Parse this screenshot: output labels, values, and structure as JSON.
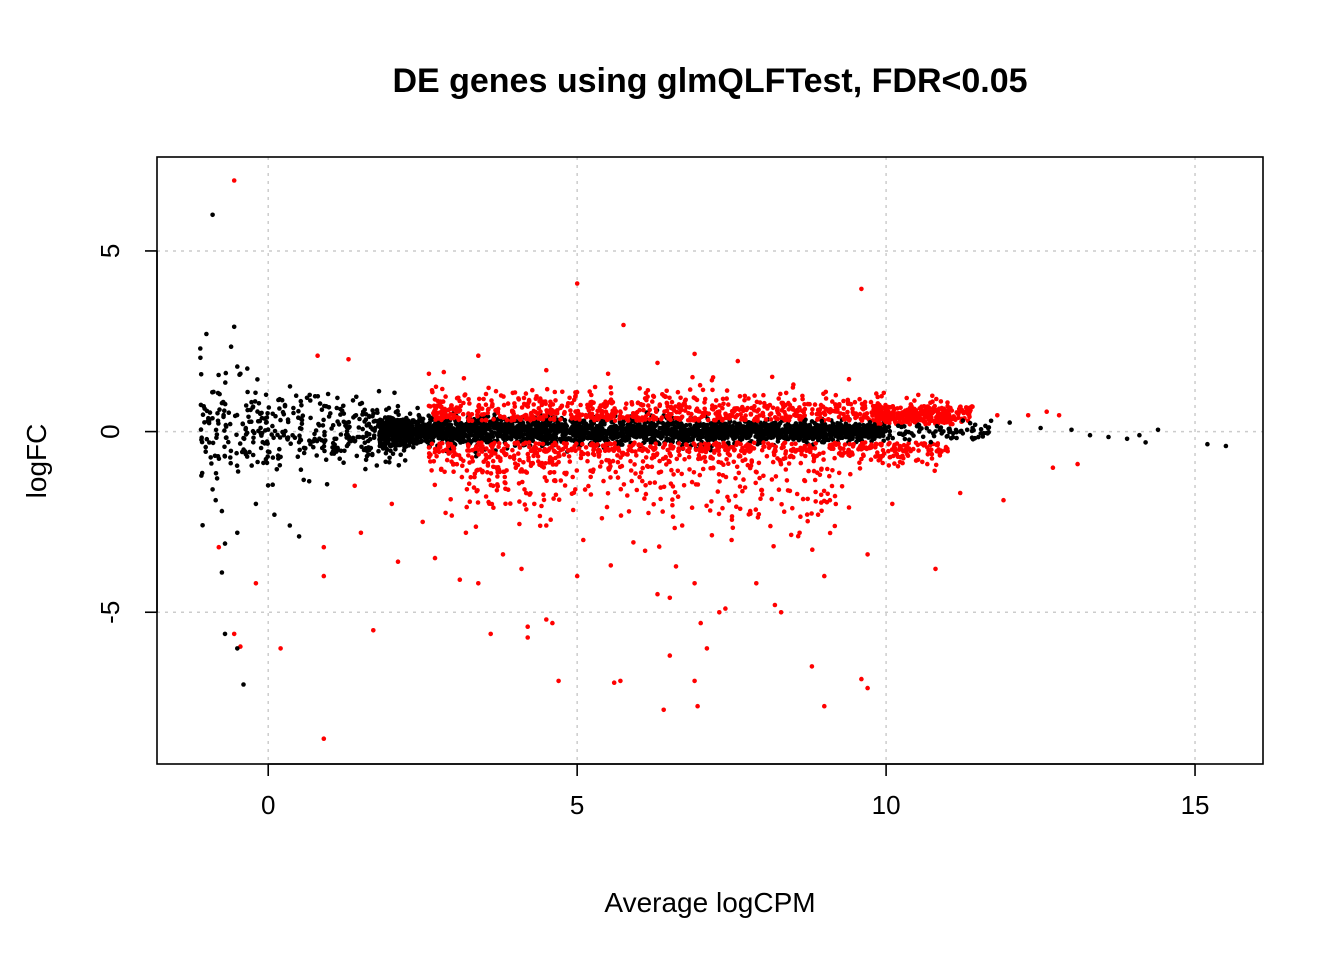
{
  "chart_data": {
    "type": "scatter",
    "title": "DE genes using glmQLFTest, FDR<0.05",
    "xlabel": "Average logCPM",
    "ylabel": "logFC",
    "xlim": [
      -1.8,
      16.1
    ],
    "ylim": [
      -9.2,
      7.6
    ],
    "xticks": [
      0,
      5,
      10,
      15
    ],
    "yticks": [
      -5,
      0,
      5
    ],
    "xtick_labels": [
      "0",
      "5",
      "10",
      "15"
    ],
    "ytick_labels": [
      "-5",
      "0",
      "5"
    ],
    "grid": true,
    "legend": "none",
    "colors": {
      "de": "#ff0000",
      "not_de": "#000000",
      "grid": "#cccccc"
    },
    "series_note_bulk": "bulk of genes lie near logFC 0; DE genes are red, non-DE genes black",
    "series": [
      {
        "color": "#ff0000",
        "points": [
          [
            -0.55,
            6.95
          ],
          [
            5.0,
            4.1
          ],
          [
            9.6,
            3.95
          ],
          [
            5.75,
            2.95
          ],
          [
            0.8,
            2.1
          ],
          [
            1.3,
            2.0
          ],
          [
            3.4,
            2.1
          ],
          [
            6.9,
            2.15
          ],
          [
            7.6,
            1.95
          ],
          [
            6.3,
            1.9
          ],
          [
            9.4,
            1.45
          ],
          [
            4.5,
            1.7
          ],
          [
            5.5,
            1.6
          ],
          [
            8.5,
            1.3
          ],
          [
            7.2,
            1.5
          ],
          [
            2.6,
            1.6
          ],
          [
            0.9,
            -3.2
          ],
          [
            -0.8,
            -3.2
          ],
          [
            -0.2,
            -4.2
          ],
          [
            0.9,
            -4.0
          ],
          [
            1.7,
            -5.5
          ],
          [
            0.2,
            -6.0
          ],
          [
            -0.55,
            -5.6
          ],
          [
            -0.45,
            -5.95
          ],
          [
            0.9,
            -8.5
          ],
          [
            2.1,
            -3.6
          ],
          [
            2.7,
            -3.5
          ],
          [
            3.1,
            -4.1
          ],
          [
            3.4,
            -4.2
          ],
          [
            3.6,
            -5.6
          ],
          [
            4.2,
            -5.4
          ],
          [
            4.2,
            -5.7
          ],
          [
            4.5,
            -5.2
          ],
          [
            4.6,
            -5.3
          ],
          [
            4.7,
            -6.9
          ],
          [
            5.0,
            -4.0
          ],
          [
            5.6,
            -6.95
          ],
          [
            5.7,
            -6.9
          ],
          [
            6.3,
            -4.5
          ],
          [
            6.5,
            -4.6
          ],
          [
            6.5,
            -6.2
          ],
          [
            6.4,
            -7.7
          ],
          [
            6.9,
            -4.2
          ],
          [
            6.9,
            -6.9
          ],
          [
            6.95,
            -7.6
          ],
          [
            7.0,
            -5.3
          ],
          [
            7.1,
            -6.0
          ],
          [
            7.3,
            -5.0
          ],
          [
            7.4,
            -4.9
          ],
          [
            7.9,
            -4.2
          ],
          [
            8.2,
            -4.8
          ],
          [
            8.3,
            -5.0
          ],
          [
            8.8,
            -6.5
          ],
          [
            9.0,
            -7.6
          ],
          [
            9.0,
            -4.0
          ],
          [
            9.6,
            -6.85
          ],
          [
            9.7,
            -7.1
          ],
          [
            9.7,
            -3.4
          ],
          [
            10.8,
            -3.8
          ],
          [
            4.1,
            -3.8
          ],
          [
            3.8,
            -3.4
          ],
          [
            5.1,
            -3.0
          ],
          [
            6.1,
            -3.3
          ],
          [
            7.5,
            -3.0
          ],
          [
            8.6,
            -2.8
          ],
          [
            10.1,
            -2.0
          ],
          [
            11.2,
            -1.7
          ],
          [
            11.9,
            -1.9
          ],
          [
            12.7,
            -1.0
          ],
          [
            13.1,
            -0.9
          ],
          [
            11.8,
            0.45
          ],
          [
            12.3,
            0.45
          ],
          [
            12.6,
            0.55
          ],
          [
            12.8,
            0.45
          ],
          [
            10.4,
            0.6
          ],
          [
            10.9,
            0.65
          ],
          [
            2.5,
            -2.5
          ],
          [
            3.2,
            -2.8
          ],
          [
            4.5,
            -2.6
          ],
          [
            5.4,
            -2.4
          ],
          [
            6.7,
            -2.6
          ],
          [
            7.8,
            -2.2
          ],
          [
            8.9,
            -2.3
          ],
          [
            9.4,
            -2.1
          ],
          [
            2.0,
            -2.0
          ],
          [
            1.5,
            -2.8
          ],
          [
            1.4,
            -1.5
          ]
        ]
      },
      {
        "color": "#000000",
        "points": [
          [
            -0.9,
            6.0
          ],
          [
            -1.0,
            2.7
          ],
          [
            -1.1,
            2.3
          ],
          [
            -0.55,
            2.9
          ],
          [
            -0.6,
            2.35
          ],
          [
            -0.5,
            1.8
          ],
          [
            -0.45,
            1.6
          ],
          [
            -0.9,
            -1.6
          ],
          [
            -0.85,
            -1.9
          ],
          [
            -0.75,
            -2.2
          ],
          [
            -0.7,
            -3.1
          ],
          [
            -0.75,
            -3.9
          ],
          [
            -0.7,
            -5.6
          ],
          [
            -0.5,
            -6.0
          ],
          [
            -0.4,
            -7.0
          ],
          [
            -0.5,
            -2.8
          ],
          [
            -0.2,
            -2.0
          ],
          [
            0.35,
            -2.6
          ],
          [
            0.5,
            -2.9
          ],
          [
            0.1,
            -2.3
          ],
          [
            11.7,
            0.3
          ],
          [
            12.0,
            0.25
          ],
          [
            12.5,
            0.1
          ],
          [
            13.0,
            0.05
          ],
          [
            13.3,
            -0.1
          ],
          [
            13.6,
            -0.15
          ],
          [
            13.9,
            -0.2
          ],
          [
            14.1,
            -0.1
          ],
          [
            14.2,
            -0.3
          ],
          [
            14.4,
            0.05
          ],
          [
            15.2,
            -0.35
          ],
          [
            15.5,
            -0.4
          ],
          [
            11.4,
            0.1
          ],
          [
            11.2,
            0.0
          ],
          [
            10.9,
            -0.05
          ],
          [
            10.5,
            0.15
          ]
        ]
      }
    ]
  }
}
